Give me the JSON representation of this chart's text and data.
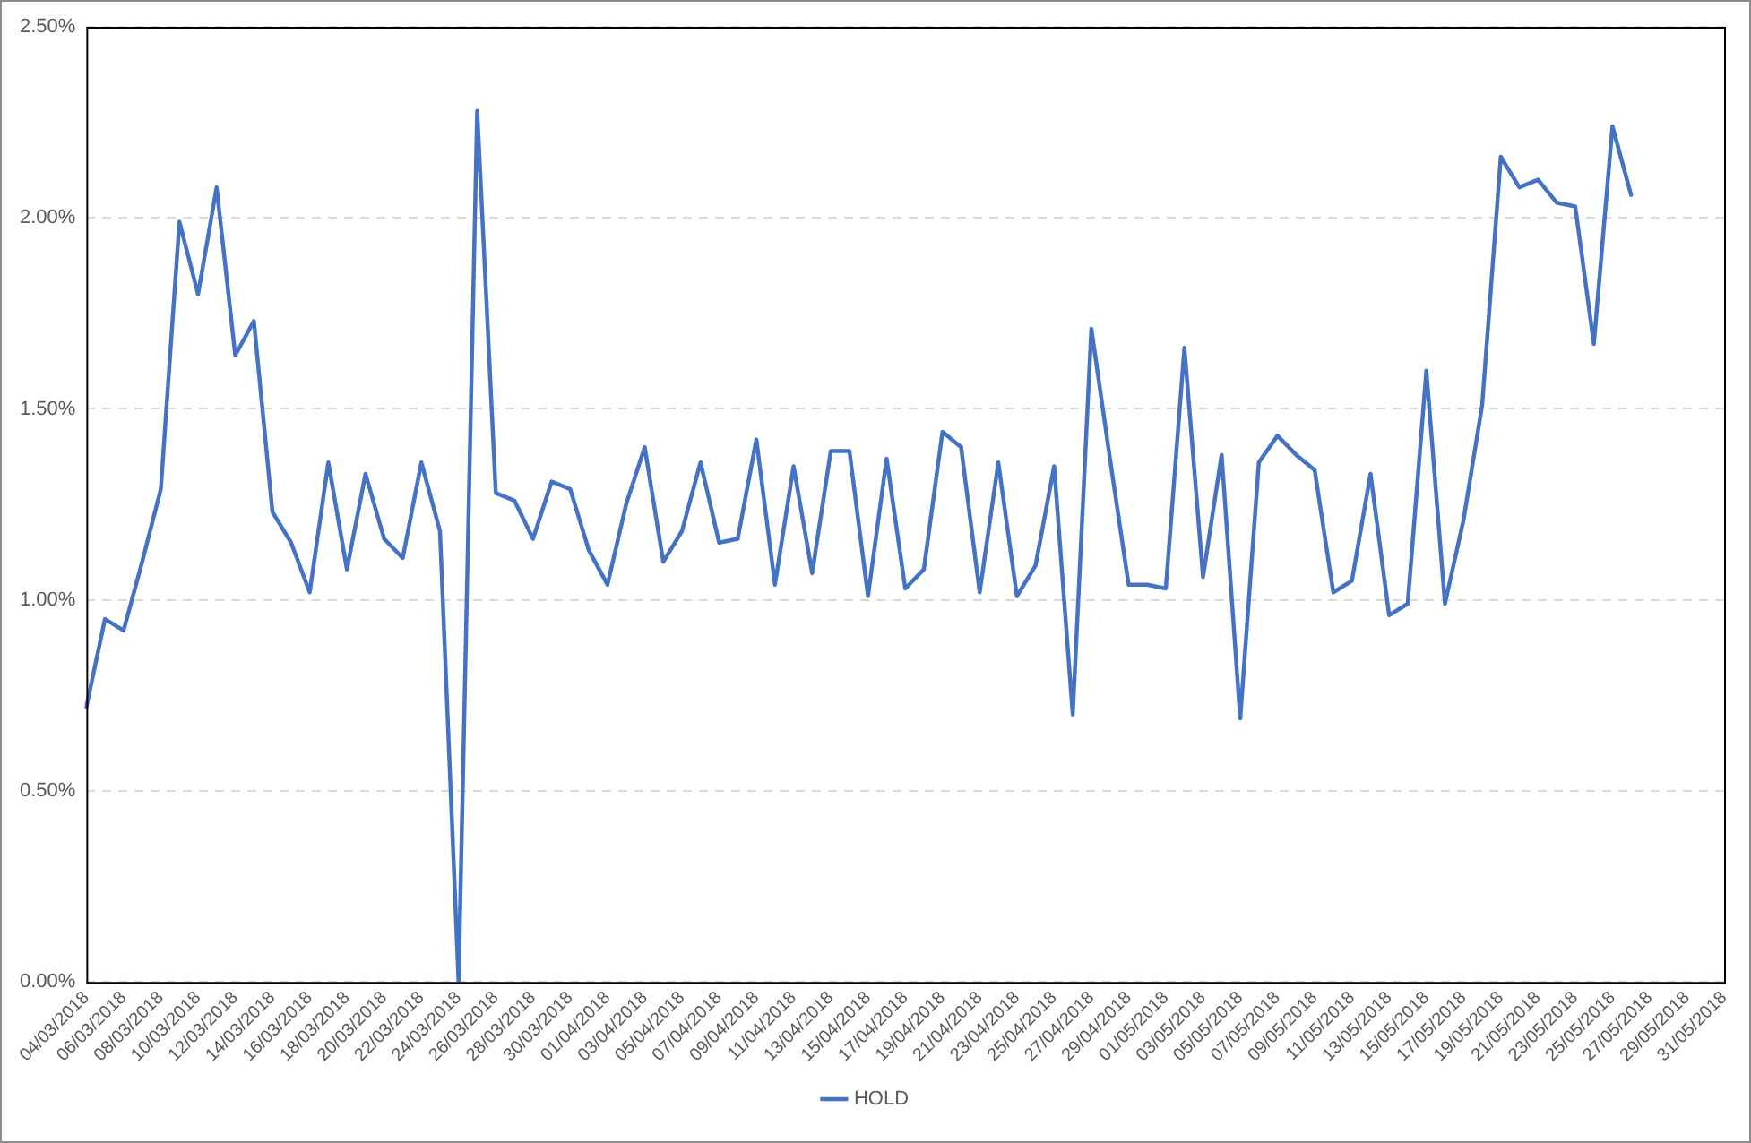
{
  "chart_data": {
    "type": "line",
    "categories": [
      "04/03/2018",
      null,
      "06/03/2018",
      null,
      "08/03/2018",
      null,
      "10/03/2018",
      null,
      "12/03/2018",
      null,
      "14/03/2018",
      null,
      "16/03/2018",
      null,
      "18/03/2018",
      null,
      "20/03/2018",
      null,
      "22/03/2018",
      null,
      "24/03/2018",
      null,
      "26/03/2018",
      null,
      "28/03/2018",
      null,
      "30/03/2018",
      null,
      "01/04/2018",
      null,
      "03/04/2018",
      null,
      "05/04/2018",
      null,
      "07/04/2018",
      null,
      "09/04/2018",
      null,
      "11/04/2018",
      null,
      "13/04/2018",
      null,
      "15/04/2018",
      null,
      "17/04/2018",
      null,
      "19/04/2018",
      null,
      "21/04/2018",
      null,
      "23/04/2018",
      null,
      "25/04/2018",
      null,
      "27/04/2018",
      null,
      "29/04/2018",
      null,
      "01/05/2018",
      null,
      "03/05/2018",
      null,
      "05/05/2018",
      null,
      "07/05/2018",
      null,
      "09/05/2018",
      null,
      "11/05/2018",
      null,
      "13/05/2018",
      null,
      "15/05/2018",
      null,
      "17/05/2018",
      null,
      "19/05/2018",
      null,
      "21/05/2018",
      null,
      "23/05/2018",
      null,
      "25/05/2018",
      null,
      "27/05/2018",
      null,
      "29/05/2018",
      null,
      "31/05/2018"
    ],
    "series": [
      {
        "name": "HOLD",
        "color": "#4472c4",
        "values": [
          0.72,
          0.95,
          0.92,
          1.1,
          1.29,
          1.99,
          1.8,
          2.08,
          1.64,
          1.73,
          1.23,
          1.15,
          1.02,
          1.36,
          1.08,
          1.33,
          1.16,
          1.11,
          1.36,
          1.18,
          0.0,
          2.28,
          1.28,
          1.26,
          1.16,
          1.31,
          1.29,
          1.13,
          1.04,
          1.25,
          1.4,
          1.1,
          1.18,
          1.36,
          1.15,
          1.16,
          1.42,
          1.04,
          1.35,
          1.07,
          1.39,
          1.39,
          1.01,
          1.37,
          1.03,
          1.08,
          1.44,
          1.4,
          1.02,
          1.36,
          1.01,
          1.09,
          1.35,
          0.7,
          1.71,
          1.37,
          1.04,
          1.04,
          1.03,
          1.66,
          1.06,
          1.38,
          0.69,
          1.36,
          1.43,
          1.38,
          1.34,
          1.02,
          1.05,
          1.33,
          0.96,
          0.99,
          1.6,
          0.99,
          1.21,
          1.51,
          2.16,
          2.08,
          2.1,
          2.04,
          2.03,
          1.67,
          2.24,
          2.06,
          null,
          null,
          null,
          null,
          null
        ]
      }
    ],
    "ylim": [
      0,
      2.5
    ],
    "yticks": [
      {
        "value": 0,
        "label": "0.00%"
      },
      {
        "value": 0.5,
        "label": "0.50%"
      },
      {
        "value": 1,
        "label": "1.00%"
      },
      {
        "value": 1.5,
        "label": "1.50%"
      },
      {
        "value": 2,
        "label": "2.00%"
      },
      {
        "value": 2.5,
        "label": "2.50%"
      }
    ],
    "grid": "y",
    "legend": "bottom",
    "marker": "none",
    "line_style": "solid"
  }
}
